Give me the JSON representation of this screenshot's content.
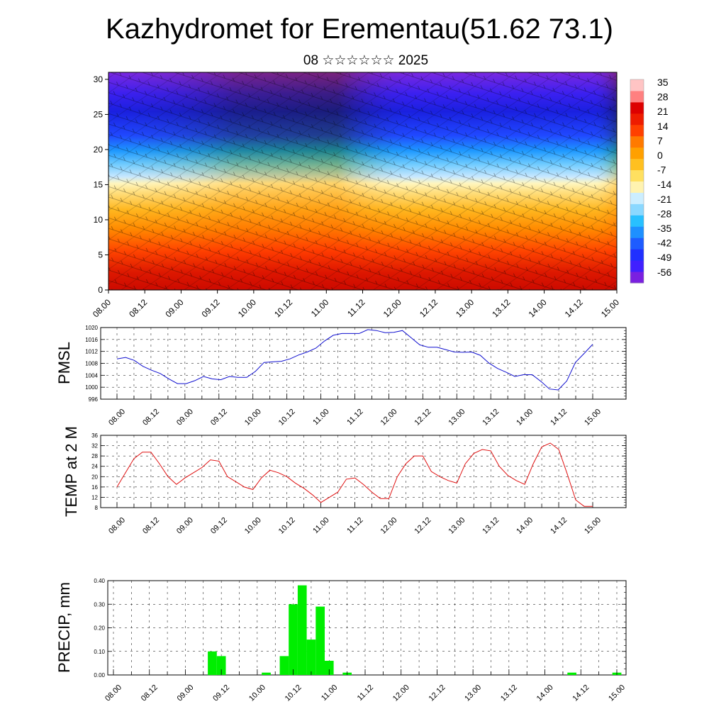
{
  "header": {
    "title": "Kazhydromet for Erementau(51.62 73.1)",
    "subtitle": "08 ☆☆☆☆☆☆ 2025"
  },
  "colors": {
    "pmsl_line": "#1010d0",
    "temp_line": "#e01010",
    "precip_bar": "#00ee00",
    "colorbar": [
      "#7a20e0",
      "#4020ff",
      "#2030ff",
      "#1e5cff",
      "#1e90ff",
      "#28c0ff",
      "#8ad8ff",
      "#cceeff",
      "#fff3b0",
      "#ffe060",
      "#ffc020",
      "#ffa000",
      "#ff7a00",
      "#ff4000",
      "#ee1c00",
      "#dd0000",
      "#ff8080",
      "#ffc4c4"
    ]
  },
  "chart_data": [
    {
      "id": "temperature_cross_section",
      "type": "heatmap",
      "x_tick_labels": [
        "08.00",
        "08.12",
        "09.00",
        "09.12",
        "10.00",
        "10.12",
        "11.00",
        "11.12",
        "12.00",
        "12.12",
        "13.00",
        "13.12",
        "14.00",
        "14.12",
        "15.00"
      ],
      "y_ticks": [
        0,
        5,
        10,
        15,
        20,
        25,
        30
      ],
      "ylim": [
        0,
        31
      ],
      "colorbar_labels": [
        "35",
        "28",
        "21",
        "14",
        "7",
        "0",
        "-7",
        "-14",
        "-21",
        "-28",
        "-35",
        "-42",
        "-49",
        "-56"
      ]
    },
    {
      "id": "pmsl",
      "type": "line",
      "ylabel": "PMSL",
      "ylim": [
        996,
        1020
      ],
      "y_ticks": [
        "996",
        "1000",
        "1004",
        "1008",
        "1012",
        "1016",
        "1020"
      ],
      "x_tick_labels": [
        "08.00",
        "08.12",
        "09.00",
        "09.12",
        "10.00",
        "10.12",
        "11.00",
        "11.12",
        "12.00",
        "12.12",
        "13.00",
        "13.12",
        "14.00",
        "14.12",
        "15.00"
      ],
      "series": [
        {
          "values": [
            1009.5,
            1010,
            1009,
            1007,
            1005.7,
            1004.6,
            1002.8,
            1001.2,
            1001.2,
            1002.2,
            1003.6,
            1002.8,
            1002.5,
            1003.6,
            1003.3,
            1003.3,
            1005.3,
            1008.3,
            1008.5,
            1008.7,
            1009.5,
            1010.8,
            1011.8,
            1013.1,
            1015.5,
            1017.4,
            1018,
            1018,
            1018,
            1019.3,
            1019,
            1018.3,
            1018.4,
            1019,
            1016.6,
            1014.2,
            1013.4,
            1013.4,
            1012.6,
            1011.8,
            1011.7,
            1011.8,
            1010.7,
            1008.1,
            1006.3,
            1005,
            1003.6,
            1004.2,
            1004.2,
            1002,
            999.4,
            999.1,
            1002.1,
            1008.3,
            1011.3,
            1014.4
          ]
        }
      ]
    },
    {
      "id": "temp2m",
      "type": "line",
      "ylabel": "TEMP at 2 M",
      "ylim": [
        8,
        36
      ],
      "y_ticks": [
        "8",
        "12",
        "16",
        "20",
        "24",
        "28",
        "32",
        "36"
      ],
      "x_tick_labels": [
        "08.00",
        "08.12",
        "09.00",
        "09.12",
        "10.00",
        "10.12",
        "11.00",
        "11.12",
        "12.00",
        "12.12",
        "13.00",
        "13.12",
        "14.00",
        "14.12",
        "15.00"
      ],
      "series": [
        {
          "values": [
            16,
            21.5,
            27,
            29.5,
            29.5,
            25,
            20,
            17,
            19.5,
            21.5,
            23.5,
            26.5,
            26,
            20,
            18,
            16,
            15,
            19.5,
            22.5,
            21.5,
            20,
            17.5,
            15.5,
            13,
            10,
            12,
            14,
            19,
            19.5,
            17,
            14,
            11.5,
            11.5,
            20,
            25,
            28,
            28,
            22,
            20,
            18.5,
            17.5,
            25,
            29,
            30.5,
            30,
            24,
            20.5,
            18.5,
            17,
            25,
            31.5,
            33,
            30.5,
            21,
            11,
            8.5,
            8.5
          ]
        }
      ]
    },
    {
      "id": "precip",
      "type": "bar",
      "ylabel": "PRECIP, mm",
      "ylim": [
        0,
        0.4
      ],
      "y_ticks": [
        "0.00",
        "0.10",
        "0.20",
        "0.30",
        "0.40"
      ],
      "x_tick_labels": [
        "08.00",
        "08.12",
        "09.00",
        "09.12",
        "10.00",
        "10.12",
        "11.00",
        "11.12",
        "12.00",
        "12.12",
        "13.00",
        "13.12",
        "14.00",
        "14.12",
        "15.00"
      ],
      "bars": [
        {
          "t": 11,
          "value": 0.1
        },
        {
          "t": 12,
          "value": 0.08
        },
        {
          "t": 17,
          "value": 0.01
        },
        {
          "t": 19,
          "value": 0.08
        },
        {
          "t": 20,
          "value": 0.3
        },
        {
          "t": 21,
          "value": 0.38
        },
        {
          "t": 22,
          "value": 0.15
        },
        {
          "t": 23,
          "value": 0.29
        },
        {
          "t": 24,
          "value": 0.06
        },
        {
          "t": 26,
          "value": 0.01
        },
        {
          "t": 51,
          "value": 0.01
        },
        {
          "t": 56,
          "value": 0.01
        }
      ]
    }
  ]
}
